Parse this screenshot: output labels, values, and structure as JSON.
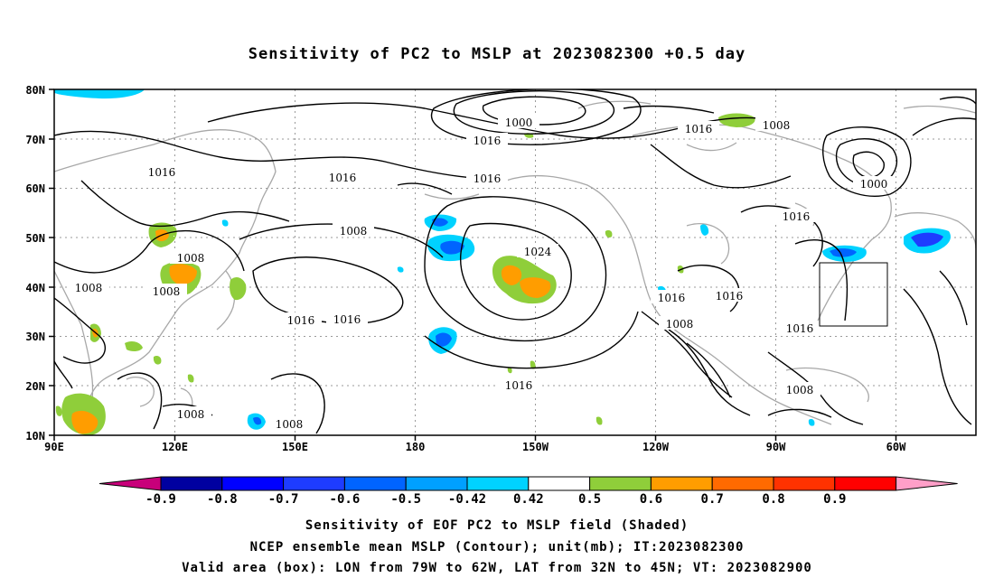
{
  "title": "Sensitivity of PC2 to MSLP at 2023082300 +0.5 day",
  "axes": {
    "lon_ticks": [
      "90E",
      "120E",
      "150E",
      "180",
      "150W",
      "120W",
      "90W",
      "60W"
    ],
    "lat_ticks": [
      "80N",
      "70N",
      "60N",
      "50N",
      "40N",
      "30N",
      "20N",
      "10N"
    ],
    "lon_range": [
      90,
      320
    ],
    "lat_range": [
      10,
      80
    ],
    "grid": "dotted"
  },
  "contour_labels": [
    "1000",
    "1016",
    "1016",
    "1008",
    "1016",
    "1016",
    "1016",
    "1008",
    "1016",
    "1000",
    "1016",
    "1008",
    "1008",
    "1008",
    "1024",
    "1008",
    "1016",
    "1016",
    "1016",
    "1016",
    "1008",
    "1016",
    "1016",
    "1008",
    "1008",
    "1008"
  ],
  "valid_box": {
    "lon_w": -79,
    "lon_e": -62,
    "lat_s": 32,
    "lat_n": 45
  },
  "colorbar": {
    "labels": [
      "-0.9",
      "-0.8",
      "-0.7",
      "-0.6",
      "-0.5",
      "-0.42",
      "0.42",
      "0.5",
      "0.6",
      "0.7",
      "0.8",
      "0.9"
    ],
    "colors": [
      "#0000a0",
      "#0000ff",
      "#1e3cff",
      "#0064ff",
      "#00a0ff",
      "#00d2ff",
      "#ffffff",
      "#8fce3a",
      "#ff9d00",
      "#ff6a00",
      "#ff3200",
      "#ff0000"
    ],
    "low_end_color": "#c8007a",
    "high_end_color": "#ff9fc8"
  },
  "captions": {
    "line1": "Sensitivity of EOF PC2 to MSLP field (Shaded)",
    "line2": "NCEP ensemble mean MSLP (Contour); unit(mb); IT:2023082300",
    "line3": "Valid area (box): LON from 79W to 62W, LAT from 32N to 45N; VT: 2023082900"
  }
}
